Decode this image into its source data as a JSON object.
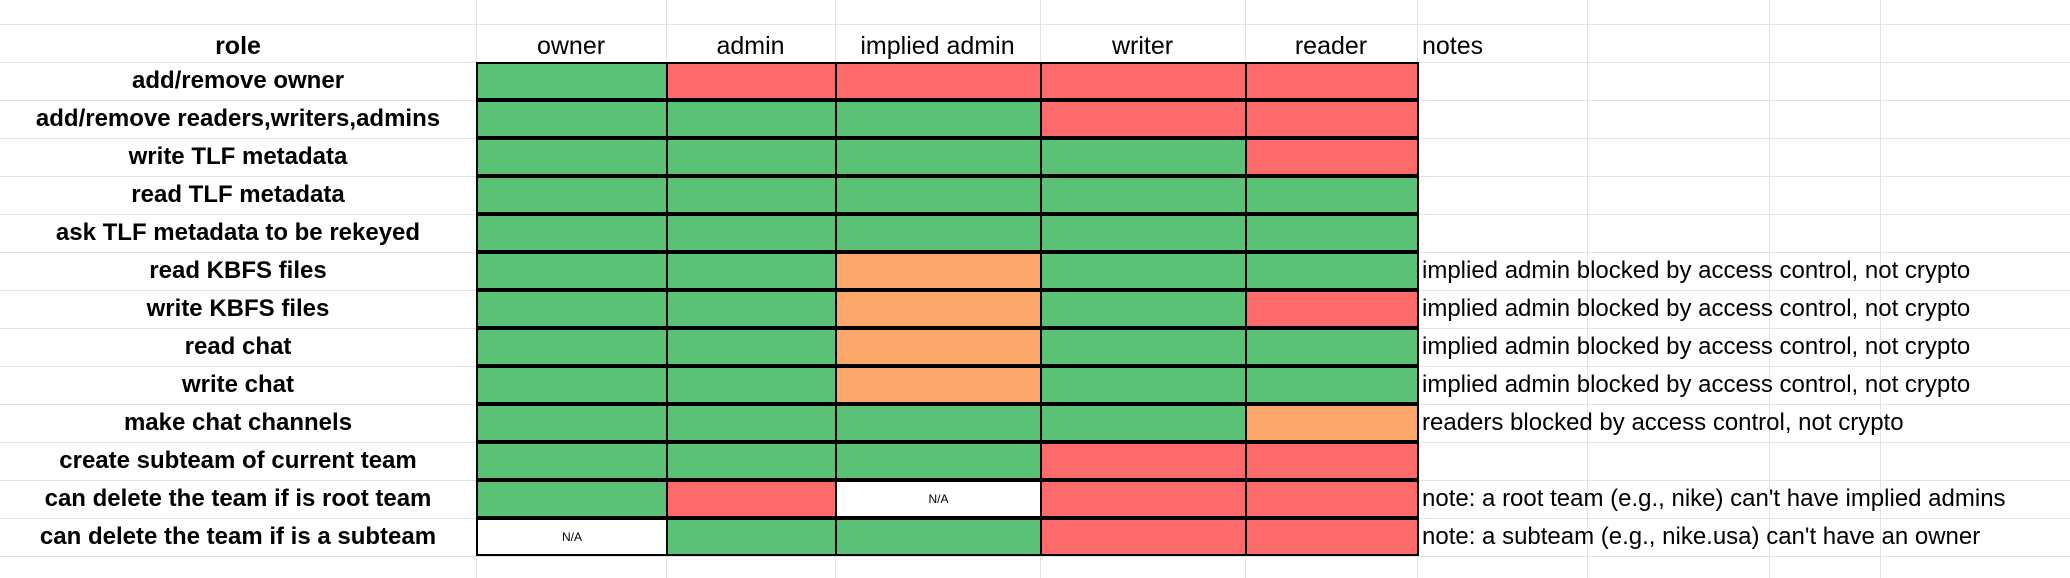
{
  "sheet": {
    "header": {
      "role_label": "role",
      "columns": [
        "owner",
        "admin",
        "implied admin",
        "writer",
        "reader"
      ],
      "notes_label": "notes"
    },
    "rows": [
      {
        "label": "add/remove owner",
        "cells": [
          {
            "status": "green"
          },
          {
            "status": "red"
          },
          {
            "status": "red"
          },
          {
            "status": "red"
          },
          {
            "status": "red"
          }
        ],
        "note": ""
      },
      {
        "label": "add/remove readers,writers,admins",
        "cells": [
          {
            "status": "green"
          },
          {
            "status": "green"
          },
          {
            "status": "green"
          },
          {
            "status": "red"
          },
          {
            "status": "red"
          }
        ],
        "note": ""
      },
      {
        "label": "write TLF metadata",
        "cells": [
          {
            "status": "green"
          },
          {
            "status": "green"
          },
          {
            "status": "green"
          },
          {
            "status": "green"
          },
          {
            "status": "red"
          }
        ],
        "note": ""
      },
      {
        "label": "read TLF metadata",
        "cells": [
          {
            "status": "green"
          },
          {
            "status": "green"
          },
          {
            "status": "green"
          },
          {
            "status": "green"
          },
          {
            "status": "green"
          }
        ],
        "note": ""
      },
      {
        "label": "ask TLF metadata to be rekeyed",
        "cells": [
          {
            "status": "green"
          },
          {
            "status": "green"
          },
          {
            "status": "green"
          },
          {
            "status": "green"
          },
          {
            "status": "green"
          }
        ],
        "note": ""
      },
      {
        "label": "read KBFS files",
        "cells": [
          {
            "status": "green"
          },
          {
            "status": "green"
          },
          {
            "status": "orange"
          },
          {
            "status": "green"
          },
          {
            "status": "green"
          }
        ],
        "note": "implied admin blocked by access control, not crypto"
      },
      {
        "label": "write KBFS files",
        "cells": [
          {
            "status": "green"
          },
          {
            "status": "green"
          },
          {
            "status": "orange"
          },
          {
            "status": "green"
          },
          {
            "status": "red"
          }
        ],
        "note": "implied admin blocked by access control, not crypto"
      },
      {
        "label": "read chat",
        "cells": [
          {
            "status": "green"
          },
          {
            "status": "green"
          },
          {
            "status": "orange"
          },
          {
            "status": "green"
          },
          {
            "status": "green"
          }
        ],
        "note": "implied admin blocked by access control, not crypto"
      },
      {
        "label": "write chat",
        "cells": [
          {
            "status": "green"
          },
          {
            "status": "green"
          },
          {
            "status": "orange"
          },
          {
            "status": "green"
          },
          {
            "status": "green"
          }
        ],
        "note": "implied admin blocked by access control, not crypto"
      },
      {
        "label": "make chat channels",
        "cells": [
          {
            "status": "green"
          },
          {
            "status": "green"
          },
          {
            "status": "green"
          },
          {
            "status": "green"
          },
          {
            "status": "orange"
          }
        ],
        "note": "readers blocked by access control, not crypto"
      },
      {
        "label": "create subteam of current team",
        "cells": [
          {
            "status": "green"
          },
          {
            "status": "green"
          },
          {
            "status": "green"
          },
          {
            "status": "red"
          },
          {
            "status": "red"
          }
        ],
        "note": ""
      },
      {
        "label": "can delete the team if is root team",
        "cells": [
          {
            "status": "green"
          },
          {
            "status": "red"
          },
          {
            "status": "white",
            "text": "N/A"
          },
          {
            "status": "red"
          },
          {
            "status": "red"
          }
        ],
        "note": "note: a root team (e.g., nike) can't have implied admins"
      },
      {
        "label": "can delete the team if is a subteam",
        "cells": [
          {
            "status": "white",
            "text": "N/A"
          },
          {
            "status": "green"
          },
          {
            "status": "green"
          },
          {
            "status": "red"
          },
          {
            "status": "red"
          }
        ],
        "note": "note: a subteam (e.g., nike.usa) can't have an owner"
      }
    ]
  },
  "colors": {
    "green": "#5ac177",
    "red": "#fd6a6b",
    "orange": "#fca86d",
    "white": "#ffffff",
    "gridline": "#e3e3e3",
    "cell_border": "#000000"
  }
}
